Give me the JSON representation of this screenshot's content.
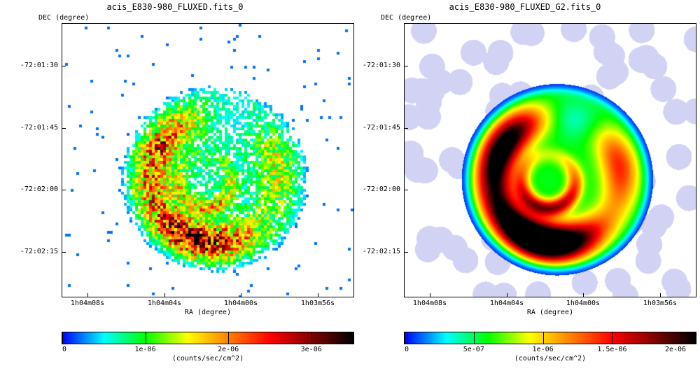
{
  "chart_data": [
    {
      "type": "heatmap",
      "title": "acis_E830-980_FLUXED.fits_0",
      "ylabel": "DEC (degree)",
      "xlabel": "RA (degree)",
      "y_ticks": [
        "-72:01:30",
        "-72:01:45",
        "-72:02:00",
        "-72:02:15"
      ],
      "x_ticks": [
        "1h04m08s",
        "1h04m04s",
        "1h04m00s",
        "1h03m56s"
      ],
      "colorbar": {
        "label": "(counts/sec/cm^2)",
        "range": [
          0,
          3.5e-06
        ],
        "ticks": [
          {
            "label": "0",
            "value": 0
          },
          {
            "label": "1e-06",
            "value": 1e-06
          },
          {
            "label": "2e-06",
            "value": 2e-06
          },
          {
            "label": "3e-06",
            "value": 3e-06
          }
        ]
      },
      "style": "binned counts image",
      "colors": [
        "#ffffff",
        "#0000ff",
        "#00ffff",
        "#00ff00",
        "#ffff00",
        "#ff8000",
        "#ff0000",
        "#800000",
        "#000000"
      ]
    },
    {
      "type": "heatmap",
      "title": "acis_E830-980_FLUXED_G2.fits_0",
      "ylabel": "DEC (degree)",
      "xlabel": "RA (degree)",
      "y_ticks": [
        "-72:01:30",
        "-72:01:45",
        "-72:02:00",
        "-72:02:15"
      ],
      "x_ticks": [
        "1h04m08s",
        "1h04m04s",
        "1h04m00s",
        "1h03m56s"
      ],
      "colorbar": {
        "label": "(counts/sec/cm^2)",
        "range": [
          0,
          2.1e-06
        ],
        "ticks": [
          {
            "label": "0",
            "value": 0
          },
          {
            "label": "5e-07",
            "value": 5e-07
          },
          {
            "label": "1e-06",
            "value": 1e-06
          },
          {
            "label": "1.5e-06",
            "value": 1.5e-06
          },
          {
            "label": "2e-06",
            "value": 2e-06
          }
        ]
      },
      "style": "gaussian smoothed image",
      "colors": [
        "#ffffff",
        "#0000ff",
        "#00ffff",
        "#00ff00",
        "#ffff00",
        "#ff8000",
        "#ff0000",
        "#800000",
        "#000000"
      ]
    }
  ]
}
